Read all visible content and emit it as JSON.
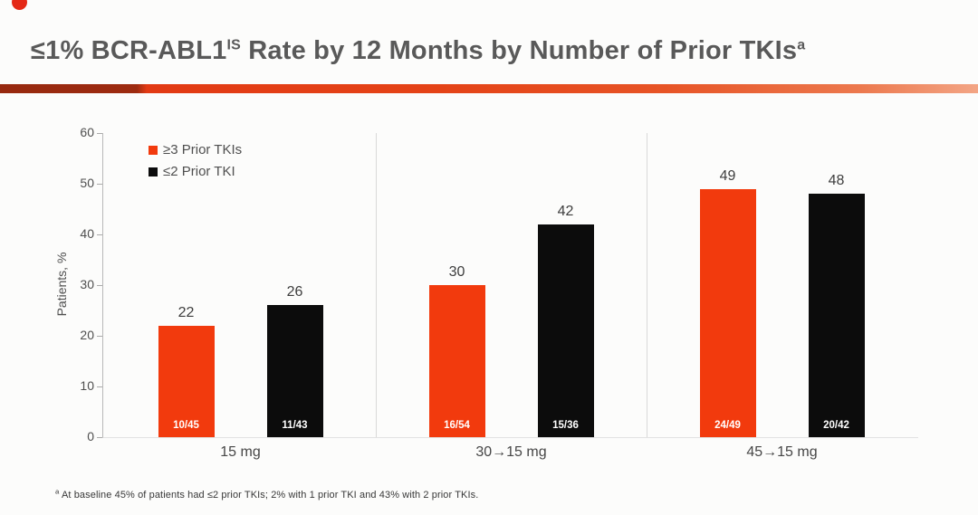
{
  "title": {
    "part1": "≤1% BCR-ABL1",
    "sup1": "IS",
    "part2": " Rate by 12 Months by Number of Prior TKIs",
    "sup2": "a"
  },
  "footnote": {
    "marker": "a",
    "text": " At baseline 45% of patients had ≤2 prior TKIs; 2% with 1 prior TKI and 43% with 2 prior TKIs."
  },
  "accent_colors": {
    "bullet_dot": "#e42815",
    "title_rule_dark": "#9d2b10",
    "title_rule_bright": "#e23a14",
    "title_rule_light": "#f3a585",
    "series_red": "#f23a0d",
    "series_black": "#0c0c0c"
  },
  "chart_data": {
    "type": "bar",
    "title": "≤1% BCR-ABL1 IS Rate by 12 Months by Number of Prior TKIs (a)",
    "categories": [
      "15 mg",
      "30→15 mg",
      "45→15 mg"
    ],
    "series": [
      {
        "name": "≥3 Prior TKIs",
        "color": "#f23a0d",
        "values": [
          22,
          30,
          49
        ],
        "labels": [
          "10/45",
          "16/54",
          "24/49"
        ]
      },
      {
        "name": "≤2 Prior TKI",
        "color": "#0c0c0c",
        "values": [
          26,
          42,
          48
        ],
        "labels": [
          "11/43",
          "15/36",
          "20/42"
        ]
      }
    ],
    "xlabel": "",
    "ylabel": "Patients, %",
    "ylim": [
      0,
      60
    ],
    "yticks": [
      0,
      10,
      20,
      30,
      40,
      50,
      60
    ],
    "legend_position": "upper left",
    "grid": false,
    "panel_dividers_between_groups": true
  }
}
